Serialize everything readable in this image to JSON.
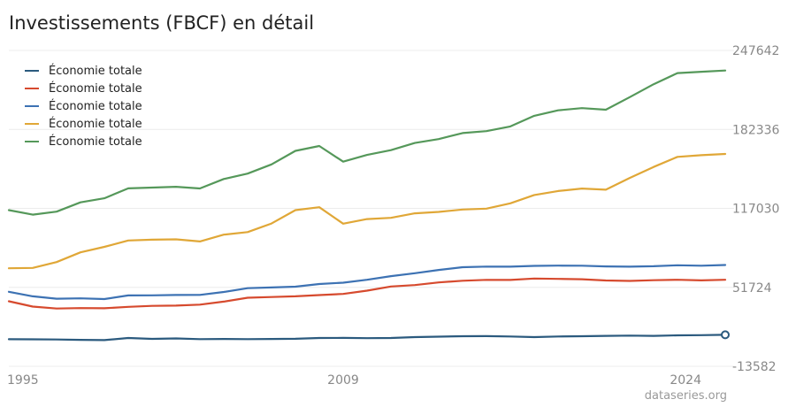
{
  "title": "Investissements (FBCF) en détail",
  "watermark": "dataseries.org",
  "chart_data": {
    "type": "line",
    "x": [
      1995,
      1996,
      1997,
      1998,
      1999,
      2000,
      2001,
      2002,
      2003,
      2004,
      2005,
      2006,
      2007,
      2008,
      2009,
      2010,
      2011,
      2012,
      2013,
      2014,
      2015,
      2016,
      2017,
      2018,
      2019,
      2020,
      2021,
      2022,
      2023,
      2024,
      2025
    ],
    "xticks": [
      "1995",
      "2009",
      "2024"
    ],
    "yticks": [
      "-13582",
      "51724",
      "117030",
      "182336",
      "247642"
    ],
    "ylim": [
      -13582,
      247642
    ],
    "legend_position": "top-left",
    "series": [
      {
        "name": "Économie totale",
        "color": "#2b5a7e",
        "values": [
          8800,
          8700,
          8600,
          8300,
          8100,
          9800,
          9100,
          9500,
          8900,
          9000,
          8900,
          9000,
          9200,
          9800,
          9900,
          9700,
          9800,
          10600,
          10900,
          11300,
          11400,
          11100,
          10600,
          11100,
          11300,
          11600,
          11800,
          11600,
          12000,
          12200,
          12500
        ]
      },
      {
        "name": "Économie totale",
        "color": "#d64a2e",
        "values": [
          40200,
          35800,
          34200,
          34600,
          34400,
          35600,
          36400,
          36600,
          37400,
          39900,
          43100,
          43700,
          44300,
          45300,
          46300,
          49000,
          52400,
          53600,
          55800,
          57200,
          57900,
          57800,
          59000,
          58700,
          58400,
          57400,
          57000,
          57600,
          58000,
          57500,
          58000
        ]
      },
      {
        "name": "Économie totale",
        "color": "#3d72b3",
        "values": [
          48000,
          44300,
          42300,
          42600,
          42000,
          45000,
          45100,
          45400,
          45500,
          47900,
          51000,
          51600,
          52300,
          54500,
          55600,
          58000,
          61000,
          63400,
          66100,
          68400,
          68900,
          68800,
          69500,
          69700,
          69600,
          69000,
          68800,
          69200,
          70000,
          69600,
          70200
        ]
      },
      {
        "name": "Économie totale",
        "color": "#e0a737",
        "values": [
          67500,
          67800,
          72600,
          80700,
          85200,
          90500,
          91100,
          91400,
          89700,
          95300,
          97400,
          104500,
          115600,
          118000,
          104400,
          108200,
          109200,
          112900,
          114100,
          116100,
          116800,
          121200,
          128100,
          131400,
          133400,
          132500,
          142200,
          151300,
          159600,
          161000,
          162000
        ]
      },
      {
        "name": "Économie totale",
        "color": "#55985a",
        "values": [
          115600,
          111800,
          114300,
          122000,
          125400,
          133600,
          134200,
          134900,
          133500,
          141300,
          145800,
          153400,
          164600,
          168600,
          155700,
          161200,
          165200,
          171100,
          174300,
          179300,
          180900,
          184800,
          193600,
          198100,
          199900,
          198600,
          209000,
          219700,
          228900,
          230000,
          231000
        ]
      }
    ]
  }
}
